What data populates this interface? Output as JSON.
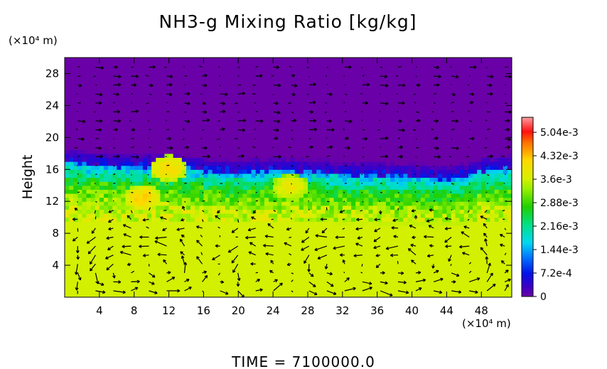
{
  "chart_data": {
    "type": "heatmap",
    "title": "NH3-g Mixing Ratio [kg/kg]",
    "ylabel": "Height",
    "y_unit": "(×10⁴ m)",
    "x_unit": "(×10⁴ m)",
    "xlim": [
      0,
      51.5
    ],
    "ylim": [
      0,
      30
    ],
    "x_ticks": [
      4,
      8,
      12,
      16,
      20,
      24,
      28,
      32,
      36,
      40,
      44,
      48
    ],
    "y_ticks": [
      4,
      8,
      12,
      16,
      20,
      24,
      28
    ],
    "colorbar": {
      "min": 0,
      "max": 0.0055,
      "tick_values": [
        0,
        0.00072,
        0.00144,
        0.00216,
        0.00288,
        0.0036,
        0.00432,
        0.00504
      ],
      "tick_labels": [
        "0",
        "7.2e-4",
        "1.44e-3",
        "2.16e-3",
        "2.88e-3",
        "3.6e-3",
        "4.32e-3",
        "5.04e-3"
      ]
    },
    "field_profile": {
      "description_levels_height": [
        0,
        10,
        12,
        14,
        16,
        17,
        18,
        30
      ],
      "mixing_ratio": [
        0.0036,
        0.0036,
        0.0033,
        0.0027,
        0.0016,
        0.0005,
        0,
        0
      ]
    },
    "cloud_top_height": [
      [
        0,
        17.6
      ],
      [
        4,
        17.2
      ],
      [
        8,
        17.0
      ],
      [
        12,
        17.2
      ],
      [
        16,
        16.6
      ],
      [
        20,
        16.3
      ],
      [
        24,
        16.6
      ],
      [
        28,
        16.4
      ],
      [
        32,
        16.1
      ],
      [
        36,
        16.0
      ],
      [
        40,
        15.8
      ],
      [
        44,
        15.6
      ],
      [
        46,
        15.8
      ],
      [
        48,
        16.6
      ],
      [
        51.5,
        16.8
      ]
    ],
    "enriched_regions": [
      {
        "x_center": 9,
        "y_center": 12.5,
        "value": 0.0042
      },
      {
        "x_center": 12,
        "y_center": 16.2,
        "value": 0.0041
      },
      {
        "x_center": 26,
        "y_center": 13.8,
        "value": 0.0039
      }
    ],
    "wind_cells": [
      {
        "x_center": 5.5,
        "y_center": 3.5
      },
      {
        "x_center": 12,
        "y_center": 3.5
      },
      {
        "x_center": 22,
        "y_center": 3
      },
      {
        "x_center": 31,
        "y_center": 3.5
      },
      {
        "x_center": 38,
        "y_center": 3.5
      },
      {
        "x_center": 46,
        "y_center": 4
      }
    ],
    "time_label": "TIME = 7100000.0"
  }
}
